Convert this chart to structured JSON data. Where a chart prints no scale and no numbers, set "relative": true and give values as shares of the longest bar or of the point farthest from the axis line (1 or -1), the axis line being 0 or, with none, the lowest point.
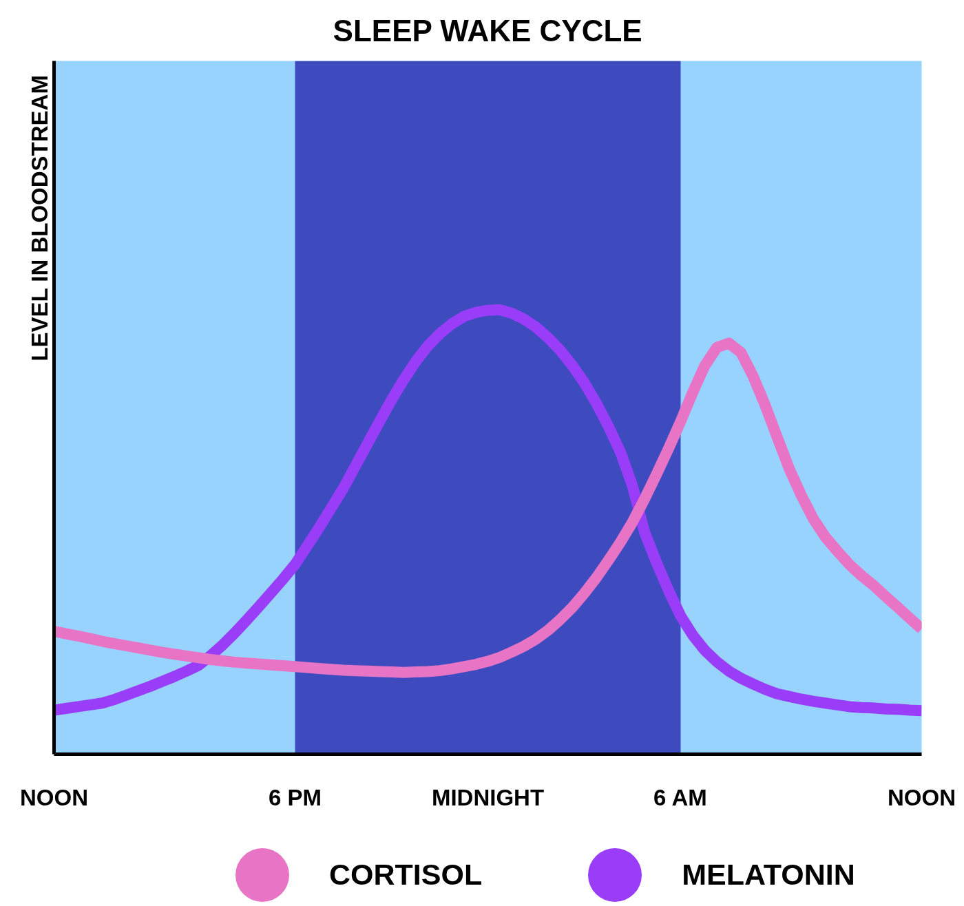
{
  "chart_data": {
    "type": "line",
    "title": "SLEEP WAKE CYCLE",
    "ylabel": "LEVEL IN BLOODSTREAM",
    "relative": true,
    "categories": [
      "NOON",
      null,
      null,
      null,
      null,
      null,
      null,
      null,
      null,
      null,
      null,
      null,
      null,
      null,
      null,
      null,
      null,
      null,
      null,
      null,
      "6 PM",
      null,
      null,
      null,
      null,
      null,
      null,
      null,
      null,
      null,
      null,
      null,
      null,
      null,
      null,
      null,
      "MIDNIGHT",
      null,
      null,
      null,
      null,
      null,
      null,
      null,
      null,
      null,
      null,
      null,
      null,
      null,
      null,
      null,
      "6 AM",
      null,
      null,
      null,
      null,
      null,
      null,
      null,
      null,
      null,
      null,
      null,
      null,
      null,
      null,
      null,
      null,
      null,
      null,
      null,
      "NOON"
    ],
    "tick_labels": "x",
    "grid": false,
    "legend": "bottom",
    "line_style": "solid",
    "bands": [
      {
        "axis": "x",
        "from": "6 PM",
        "to": "6 AM",
        "color": "#3d4bbf"
      }
    ],
    "series": [
      {
        "name": "CORTISOL",
        "color": "#e774c5",
        "values": [
          0.277,
          0.271,
          0.266,
          0.26,
          0.254,
          0.249,
          0.244,
          0.239,
          0.234,
          0.229,
          0.225,
          0.221,
          0.217,
          0.213,
          0.21,
          0.207,
          0.205,
          0.203,
          0.201,
          0.199,
          0.197,
          0.195,
          0.193,
          0.191,
          0.189,
          0.188,
          0.187,
          0.186,
          0.185,
          0.184,
          0.185,
          0.186,
          0.188,
          0.192,
          0.197,
          0.202,
          0.209,
          0.218,
          0.23,
          0.243,
          0.259,
          0.279,
          0.303,
          0.33,
          0.362,
          0.397,
          0.436,
          0.477,
          0.522,
          0.574,
          0.63,
          0.688,
          0.749,
          0.814,
          0.874,
          0.915,
          0.925,
          0.904,
          0.851,
          0.786,
          0.714,
          0.643,
          0.583,
          0.53,
          0.489,
          0.457,
          0.427,
          0.402,
          0.38,
          0.355,
          0.331,
          0.306,
          0.282
        ]
      },
      {
        "name": "MELATONIN",
        "color": "#993df9",
        "values": [
          0.099,
          0.103,
          0.107,
          0.111,
          0.115,
          0.123,
          0.133,
          0.143,
          0.153,
          0.164,
          0.175,
          0.187,
          0.2,
          0.222,
          0.246,
          0.273,
          0.302,
          0.332,
          0.363,
          0.394,
          0.427,
          0.468,
          0.51,
          0.554,
          0.598,
          0.648,
          0.698,
          0.748,
          0.797,
          0.842,
          0.883,
          0.918,
          0.946,
          0.968,
          0.985,
          0.994,
          0.999,
          1.0,
          0.992,
          0.979,
          0.961,
          0.937,
          0.909,
          0.875,
          0.836,
          0.79,
          0.738,
          0.68,
          0.604,
          0.5,
          0.431,
          0.368,
          0.311,
          0.268,
          0.234,
          0.208,
          0.187,
          0.171,
          0.158,
          0.146,
          0.136,
          0.13,
          0.124,
          0.119,
          0.115,
          0.111,
          0.107,
          0.105,
          0.104,
          0.102,
          0.101,
          0.099,
          0.098
        ]
      }
    ]
  }
}
